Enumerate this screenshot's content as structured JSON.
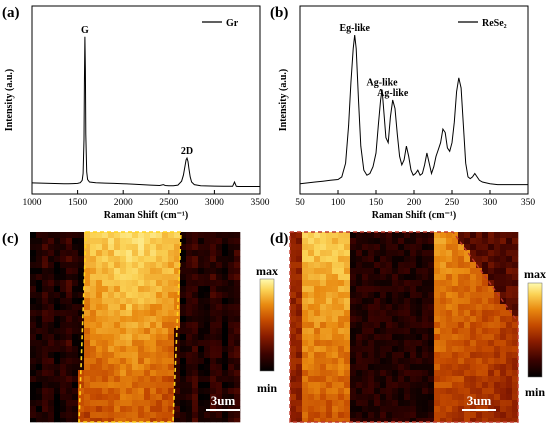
{
  "panels": {
    "a": {
      "label": "(a)",
      "chart_data": {
        "type": "line",
        "xlabel": "Raman Shift (cm⁻¹)",
        "ylabel": "Intensity (a.u.)",
        "xlim": [
          1000,
          3500
        ],
        "xticks": [
          1000,
          1500,
          2000,
          2500,
          3000,
          3500
        ],
        "ylim": [
          0,
          1.1
        ],
        "legend_position": "top-right",
        "series": [
          {
            "name": "Gr",
            "x": [
              1000,
              1100,
              1200,
              1300,
              1350,
              1400,
              1450,
              1500,
              1530,
              1550,
              1560,
              1570,
              1575,
              1580,
              1585,
              1590,
              1600,
              1610,
              1630,
              1700,
              1800,
              1900,
              2000,
              2100,
              2200,
              2300,
              2400,
              2440,
              2460,
              2500,
              2550,
              2600,
              2640,
              2660,
              2680,
              2690,
              2700,
              2710,
              2720,
              2735,
              2750,
              2780,
              2850,
              3000,
              3100,
              3200,
              3220,
              3240,
              3260,
              3300,
              3400,
              3500
            ],
            "y": [
              0.065,
              0.064,
              0.062,
              0.061,
              0.06,
              0.06,
              0.061,
              0.062,
              0.066,
              0.08,
              0.12,
              0.32,
              0.65,
              0.92,
              0.72,
              0.35,
              0.13,
              0.085,
              0.07,
              0.066,
              0.064,
              0.062,
              0.06,
              0.058,
              0.055,
              0.052,
              0.05,
              0.055,
              0.05,
              0.048,
              0.048,
              0.052,
              0.075,
              0.11,
              0.17,
              0.2,
              0.21,
              0.19,
              0.15,
              0.1,
              0.07,
              0.055,
              0.048,
              0.046,
              0.045,
              0.045,
              0.07,
              0.045,
              0.044,
              0.044,
              0.044,
              0.044
            ]
          }
        ],
        "annotations": [
          {
            "text": "G",
            "x": 1580,
            "y": 0.92
          },
          {
            "text": "2D",
            "x": 2700,
            "y": 0.21
          }
        ]
      }
    },
    "b": {
      "label": "(b)",
      "chart_data": {
        "type": "line",
        "xlabel": "Raman Shift (cm⁻¹)",
        "ylabel": "Intensity (a.u.)",
        "xlim": [
          50,
          350
        ],
        "xticks": [
          50,
          100,
          150,
          200,
          250,
          300,
          350
        ],
        "ylim": [
          0,
          1.1
        ],
        "legend_position": "top-right",
        "series": [
          {
            "name": "ReSe₂",
            "x": [
              50,
              60,
              70,
              80,
              90,
              100,
              105,
              110,
              114,
              117,
              120,
              122,
              124,
              127,
              130,
              134,
              138,
              142,
              146,
              150,
              153,
              156,
              158,
              160,
              163,
              166,
              169,
              172,
              175,
              178,
              181,
              184,
              187,
              190,
              193,
              196,
              199,
              202,
              205,
              208,
              211,
              214,
              217,
              220,
              223,
              226,
              229,
              232,
              235,
              238,
              241,
              244,
              247,
              250,
              253,
              256,
              259,
              262,
              265,
              268,
              271,
              274,
              277,
              280,
              283,
              286,
              290,
              300,
              310,
              320,
              330,
              340,
              350
            ],
            "y": [
              0.06,
              0.065,
              0.07,
              0.075,
              0.08,
              0.085,
              0.1,
              0.18,
              0.4,
              0.65,
              0.85,
              0.93,
              0.85,
              0.55,
              0.28,
              0.14,
              0.11,
              0.12,
              0.16,
              0.24,
              0.4,
              0.55,
              0.61,
              0.5,
              0.33,
              0.3,
              0.45,
              0.55,
              0.5,
              0.35,
              0.22,
              0.17,
              0.2,
              0.28,
              0.22,
              0.14,
              0.11,
              0.12,
              0.14,
              0.11,
              0.12,
              0.17,
              0.24,
              0.18,
              0.12,
              0.16,
              0.22,
              0.26,
              0.3,
              0.38,
              0.36,
              0.27,
              0.25,
              0.3,
              0.42,
              0.6,
              0.68,
              0.62,
              0.4,
              0.18,
              0.1,
              0.09,
              0.1,
              0.12,
              0.1,
              0.08,
              0.07,
              0.06,
              0.055,
              0.055,
              0.055,
              0.055,
              0.055
            ]
          }
        ],
        "annotations": [
          {
            "text": "Eg-like",
            "x": 122,
            "y": 0.93
          },
          {
            "text": "Ag-like",
            "x": 158,
            "y": 0.61
          },
          {
            "text": "Ag-like",
            "x": 172,
            "y": 0.55
          }
        ]
      }
    },
    "c": {
      "label": "(c)",
      "colorbar_max": "max",
      "colorbar_min": "min",
      "scalebar": "3um"
    },
    "d": {
      "label": "(d)",
      "colorbar_max": "max",
      "colorbar_min": "min",
      "scalebar": "3um"
    }
  },
  "colors": {
    "line": "#000000",
    "outline_c": "#ffd21a",
    "outline_d": "#c0392b",
    "colormap": [
      "#000000",
      "#3a0200",
      "#8a1c00",
      "#c44a00",
      "#e98a10",
      "#fbd255",
      "#fffbb0"
    ]
  }
}
